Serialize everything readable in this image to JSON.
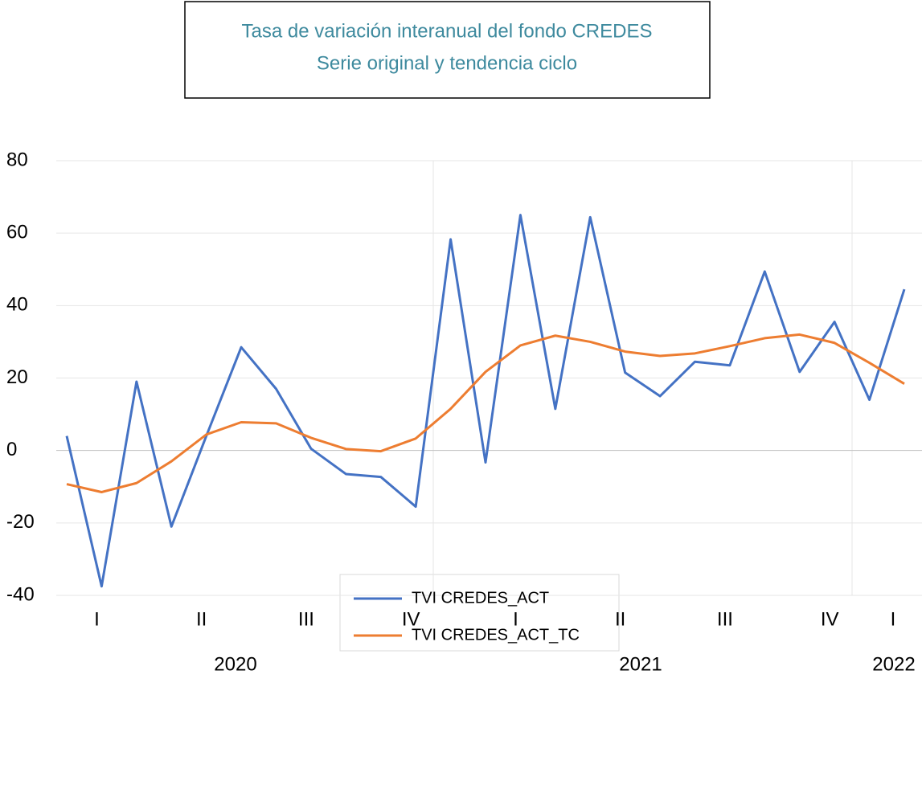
{
  "chart_data": {
    "type": "line",
    "title": "Tasa de variación interanual del fondo CREDES",
    "subtitle": "Serie original y tendencia ciclo",
    "categories": [
      null,
      "I",
      null,
      null,
      "II",
      null,
      null,
      "III",
      null,
      null,
      "IV",
      null,
      null,
      "I",
      null,
      null,
      "II",
      null,
      null,
      "III",
      null,
      null,
      "IV",
      null,
      "I"
    ],
    "years": [
      "2020",
      "2021",
      "2022"
    ],
    "series": [
      {
        "name": "TVI  CREDES_ACT",
        "color": "#4472c4",
        "values": [
          4,
          -37.5,
          19,
          -21,
          4,
          28.5,
          17,
          0.5,
          -6.5,
          -7.3,
          -15.5,
          58.3,
          -3.3,
          65,
          11.5,
          64.4,
          21.5,
          15,
          24.5,
          23.5,
          49.4,
          21.7,
          35.5,
          14,
          44.5
        ]
      },
      {
        "name": "TVI CREDES_ACT_TC",
        "color": "#ed7d31",
        "values": [
          -9.3,
          -11.5,
          -9,
          -3,
          4.4,
          7.8,
          7.5,
          3.5,
          0.4,
          -0.2,
          3.3,
          11.5,
          21.7,
          29,
          31.7,
          30,
          27.3,
          26.1,
          26.8,
          28.8,
          31,
          32,
          29.7,
          24.2,
          18.4
        ]
      }
    ],
    "ylim": [
      -40,
      80
    ],
    "yticks": [
      -40,
      -20,
      0,
      20,
      40,
      60,
      80
    ],
    "grid": true
  }
}
